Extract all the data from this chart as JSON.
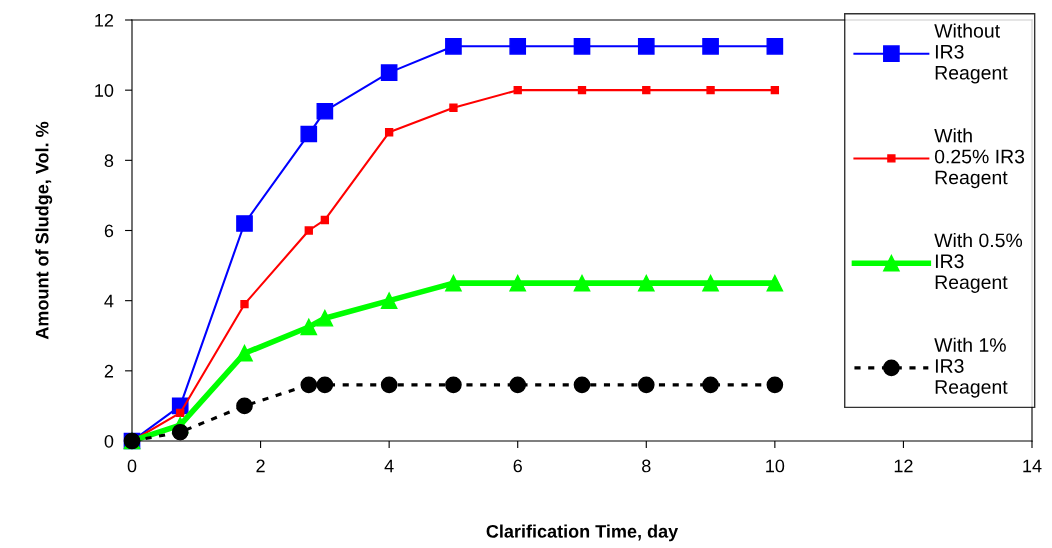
{
  "chart_data": {
    "type": "line",
    "xlabel": "Clarification Time, day",
    "ylabel": "Amount of Sludge, Vol. %",
    "x": [
      0,
      0.75,
      1.75,
      2.75,
      3,
      4,
      5,
      6,
      7,
      8,
      9,
      10
    ],
    "xlim": [
      0,
      14
    ],
    "xticks": [
      0,
      2,
      4,
      6,
      8,
      10,
      12,
      14
    ],
    "ylim": [
      0,
      12
    ],
    "yticks": [
      0,
      2,
      4,
      6,
      8,
      10,
      12
    ],
    "grid": false,
    "legend": "right",
    "series": [
      {
        "name": "Without IR3 Reagent",
        "color": "#0000ff",
        "marker": "square",
        "line_style": "solid",
        "values": [
          0,
          1.0,
          6.2,
          8.75,
          9.4,
          10.5,
          11.25,
          11.25,
          11.25,
          11.25,
          11.25,
          11.25
        ]
      },
      {
        "name": "With 0.25% IR3 Reagent",
        "color": "#ff0000",
        "marker": "square",
        "line_style": "solid",
        "values": [
          0,
          0.8,
          3.9,
          6.0,
          6.3,
          8.8,
          9.5,
          10.0,
          10.0,
          10.0,
          10.0,
          10.0
        ]
      },
      {
        "name": "With 0.5% IR3 Reagent",
        "color": "#00ff00",
        "marker": "triangle",
        "line_style": "solid",
        "values": [
          0,
          0.45,
          2.5,
          3.25,
          3.5,
          4.0,
          4.5,
          4.5,
          4.5,
          4.5,
          4.5,
          4.5
        ]
      },
      {
        "name": "With 1% IR3 Reagent",
        "color": "#000000",
        "marker": "circle",
        "line_style": "dashed",
        "values": [
          0,
          0.25,
          1.0,
          1.6,
          1.6,
          1.6,
          1.6,
          1.6,
          1.6,
          1.6,
          1.6,
          1.6
        ]
      }
    ]
  }
}
